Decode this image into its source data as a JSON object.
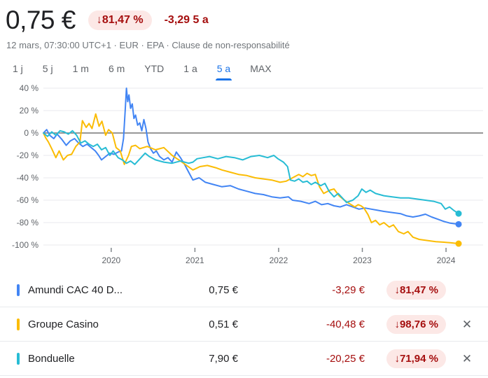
{
  "header": {
    "price": "0,75 €",
    "change_badge": "↓81,47 %",
    "change_text": "-3,29 5 a",
    "subtitle": "12 mars, 07:30:00 UTC+1 · EUR · EPA · Clause de non-responsabilité"
  },
  "tabs": {
    "items": [
      {
        "label": "1 j",
        "selected": false
      },
      {
        "label": "5 j",
        "selected": false
      },
      {
        "label": "1 m",
        "selected": false
      },
      {
        "label": "6 m",
        "selected": false
      },
      {
        "label": "YTD",
        "selected": false
      },
      {
        "label": "1 a",
        "selected": false
      },
      {
        "label": "5 a",
        "selected": true
      },
      {
        "label": "MAX",
        "selected": false
      }
    ]
  },
  "chart_data": {
    "type": "line",
    "ylabel": "% de variation",
    "ylim": [
      -100,
      40
    ],
    "grid": true,
    "y_ticks_pct": [
      40,
      20,
      0,
      -20,
      -40,
      -60,
      -80,
      -100
    ],
    "y_tick_labels": [
      "40 %",
      "20 %",
      "0 %",
      "-20 %",
      "-40 %",
      "-60 %",
      "-80 %",
      "-100 %"
    ],
    "x_tick_years": [
      2020,
      2021,
      2022,
      2023,
      2024
    ],
    "x_tick_labels": [
      "2020",
      "2021",
      "2022",
      "2023",
      "2024"
    ],
    "x_range_years": [
      2019.19,
      2024.15
    ],
    "series": [
      {
        "name": "Amundi CAC 40 D...",
        "color": "#4285f4",
        "final_pct": -81.47,
        "points": [
          [
            0,
            0
          ],
          [
            0.008,
            3
          ],
          [
            0.015,
            -2
          ],
          [
            0.025,
            -5
          ],
          [
            0.033,
            -1
          ],
          [
            0.045,
            -6
          ],
          [
            0.055,
            -11
          ],
          [
            0.065,
            -7
          ],
          [
            0.075,
            -5
          ],
          [
            0.085,
            -9
          ],
          [
            0.095,
            -12
          ],
          [
            0.105,
            -10
          ],
          [
            0.115,
            -13
          ],
          [
            0.125,
            -16
          ],
          [
            0.133,
            -20
          ],
          [
            0.14,
            -24
          ],
          [
            0.15,
            -21
          ],
          [
            0.16,
            -18
          ],
          [
            0.17,
            -19
          ],
          [
            0.18,
            -17
          ],
          [
            0.188,
            -16
          ],
          [
            0.193,
            -5
          ],
          [
            0.197,
            20
          ],
          [
            0.2,
            40
          ],
          [
            0.203,
            28
          ],
          [
            0.206,
            34
          ],
          [
            0.21,
            22
          ],
          [
            0.214,
            26
          ],
          [
            0.218,
            13
          ],
          [
            0.222,
            16
          ],
          [
            0.227,
            7
          ],
          [
            0.232,
            9
          ],
          [
            0.237,
            2
          ],
          [
            0.242,
            12
          ],
          [
            0.247,
            4
          ],
          [
            0.252,
            -8
          ],
          [
            0.258,
            -14
          ],
          [
            0.265,
            -18
          ],
          [
            0.272,
            -16
          ],
          [
            0.28,
            -21
          ],
          [
            0.29,
            -24
          ],
          [
            0.3,
            -22
          ],
          [
            0.31,
            -26
          ],
          [
            0.32,
            -17
          ],
          [
            0.33,
            -22
          ],
          [
            0.34,
            -28
          ],
          [
            0.35,
            -35
          ],
          [
            0.36,
            -42
          ],
          [
            0.375,
            -40
          ],
          [
            0.39,
            -44
          ],
          [
            0.41,
            -46
          ],
          [
            0.43,
            -48
          ],
          [
            0.45,
            -47
          ],
          [
            0.47,
            -50
          ],
          [
            0.49,
            -52
          ],
          [
            0.51,
            -54
          ],
          [
            0.53,
            -55
          ],
          [
            0.55,
            -57
          ],
          [
            0.57,
            -58
          ],
          [
            0.59,
            -57
          ],
          [
            0.6,
            -60
          ],
          [
            0.62,
            -61
          ],
          [
            0.64,
            -63
          ],
          [
            0.655,
            -61
          ],
          [
            0.67,
            -64
          ],
          [
            0.685,
            -63
          ],
          [
            0.7,
            -65
          ],
          [
            0.715,
            -66
          ],
          [
            0.73,
            -64
          ],
          [
            0.745,
            -66
          ],
          [
            0.76,
            -68
          ],
          [
            0.775,
            -67
          ],
          [
            0.79,
            -68
          ],
          [
            0.805,
            -69
          ],
          [
            0.82,
            -70
          ],
          [
            0.84,
            -71
          ],
          [
            0.86,
            -72
          ],
          [
            0.875,
            -74
          ],
          [
            0.89,
            -75
          ],
          [
            0.905,
            -74
          ],
          [
            0.92,
            -72.5
          ],
          [
            0.935,
            -75
          ],
          [
            0.95,
            -77
          ],
          [
            0.965,
            -79
          ],
          [
            0.98,
            -80.5
          ],
          [
            1,
            -81.47
          ]
        ]
      },
      {
        "name": "Groupe Casino",
        "color": "#fbbc04",
        "final_pct": -98.76,
        "points": [
          [
            0,
            0
          ],
          [
            0.005,
            -4
          ],
          [
            0.012,
            -8
          ],
          [
            0.02,
            -14
          ],
          [
            0.03,
            -22
          ],
          [
            0.038,
            -16
          ],
          [
            0.048,
            -24
          ],
          [
            0.058,
            -20
          ],
          [
            0.068,
            -19
          ],
          [
            0.078,
            -12
          ],
          [
            0.088,
            -8
          ],
          [
            0.094,
            11
          ],
          [
            0.103,
            5
          ],
          [
            0.11,
            8.5
          ],
          [
            0.117,
            4
          ],
          [
            0.126,
            17
          ],
          [
            0.134,
            6
          ],
          [
            0.141,
            10.5
          ],
          [
            0.15,
            -2
          ],
          [
            0.157,
            3
          ],
          [
            0.166,
            0
          ],
          [
            0.175,
            -13
          ],
          [
            0.185,
            -16
          ],
          [
            0.195,
            -28
          ],
          [
            0.205,
            -20
          ],
          [
            0.212,
            -12
          ],
          [
            0.222,
            -11
          ],
          [
            0.232,
            -14
          ],
          [
            0.25,
            -12
          ],
          [
            0.27,
            -15
          ],
          [
            0.29,
            -13
          ],
          [
            0.31,
            -20
          ],
          [
            0.33,
            -25
          ],
          [
            0.345,
            -29
          ],
          [
            0.36,
            -33
          ],
          [
            0.377,
            -30
          ],
          [
            0.395,
            -29
          ],
          [
            0.415,
            -31
          ],
          [
            0.43,
            -33
          ],
          [
            0.45,
            -35
          ],
          [
            0.47,
            -37
          ],
          [
            0.49,
            -38
          ],
          [
            0.51,
            -40
          ],
          [
            0.53,
            -41
          ],
          [
            0.55,
            -42
          ],
          [
            0.57,
            -44
          ],
          [
            0.585,
            -43
          ],
          [
            0.6,
            -40
          ],
          [
            0.615,
            -37
          ],
          [
            0.625,
            -39
          ],
          [
            0.635,
            -36
          ],
          [
            0.645,
            -38
          ],
          [
            0.655,
            -37
          ],
          [
            0.665,
            -48
          ],
          [
            0.675,
            -54
          ],
          [
            0.69,
            -51
          ],
          [
            0.7,
            -50
          ],
          [
            0.712,
            -56
          ],
          [
            0.725,
            -60
          ],
          [
            0.737,
            -63
          ],
          [
            0.75,
            -66
          ],
          [
            0.758,
            -64
          ],
          [
            0.765,
            -65
          ],
          [
            0.772,
            -67
          ],
          [
            0.782,
            -73
          ],
          [
            0.79,
            -80
          ],
          [
            0.8,
            -78
          ],
          [
            0.81,
            -82
          ],
          [
            0.82,
            -80
          ],
          [
            0.833,
            -84
          ],
          [
            0.843,
            -82
          ],
          [
            0.855,
            -88
          ],
          [
            0.868,
            -90
          ],
          [
            0.878,
            -88
          ],
          [
            0.89,
            -93
          ],
          [
            0.905,
            -95
          ],
          [
            0.925,
            -96
          ],
          [
            0.945,
            -97
          ],
          [
            0.965,
            -97.5
          ],
          [
            0.98,
            -98
          ],
          [
            1,
            -98.76
          ]
        ]
      },
      {
        "name": "Bonduelle",
        "color": "#27bcd4",
        "final_pct": -71.94,
        "points": [
          [
            0,
            0
          ],
          [
            0.01,
            -3
          ],
          [
            0.02,
            1
          ],
          [
            0.03,
            -2
          ],
          [
            0.04,
            2
          ],
          [
            0.05,
            1
          ],
          [
            0.06,
            -1
          ],
          [
            0.07,
            2
          ],
          [
            0.08,
            -2
          ],
          [
            0.09,
            -9
          ],
          [
            0.1,
            -7
          ],
          [
            0.11,
            -10
          ],
          [
            0.12,
            -12
          ],
          [
            0.13,
            -10
          ],
          [
            0.14,
            -15
          ],
          [
            0.15,
            -13
          ],
          [
            0.16,
            -20
          ],
          [
            0.168,
            -16
          ],
          [
            0.18,
            -22
          ],
          [
            0.19,
            -24
          ],
          [
            0.2,
            -27
          ],
          [
            0.21,
            -25
          ],
          [
            0.22,
            -28
          ],
          [
            0.235,
            -22
          ],
          [
            0.245,
            -18
          ],
          [
            0.255,
            -21
          ],
          [
            0.27,
            -24
          ],
          [
            0.29,
            -26
          ],
          [
            0.31,
            -27
          ],
          [
            0.33,
            -25
          ],
          [
            0.35,
            -27
          ],
          [
            0.36,
            -26
          ],
          [
            0.37,
            -23
          ],
          [
            0.385,
            -22
          ],
          [
            0.4,
            -21
          ],
          [
            0.42,
            -23
          ],
          [
            0.44,
            -21
          ],
          [
            0.46,
            -22
          ],
          [
            0.48,
            -24
          ],
          [
            0.5,
            -21
          ],
          [
            0.52,
            -20
          ],
          [
            0.54,
            -22
          ],
          [
            0.555,
            -20
          ],
          [
            0.565,
            -23
          ],
          [
            0.578,
            -26
          ],
          [
            0.588,
            -30
          ],
          [
            0.595,
            -42
          ],
          [
            0.605,
            -43
          ],
          [
            0.615,
            -41
          ],
          [
            0.625,
            -44
          ],
          [
            0.635,
            -43
          ],
          [
            0.645,
            -46
          ],
          [
            0.655,
            -44
          ],
          [
            0.668,
            -47
          ],
          [
            0.678,
            -45
          ],
          [
            0.688,
            -52
          ],
          [
            0.7,
            -57
          ],
          [
            0.71,
            -54
          ],
          [
            0.72,
            -58
          ],
          [
            0.73,
            -62
          ],
          [
            0.745,
            -60
          ],
          [
            0.758,
            -56
          ],
          [
            0.767,
            -50
          ],
          [
            0.777,
            -53
          ],
          [
            0.787,
            -51
          ],
          [
            0.8,
            -54
          ],
          [
            0.82,
            -56
          ],
          [
            0.84,
            -57
          ],
          [
            0.86,
            -58
          ],
          [
            0.88,
            -58
          ],
          [
            0.9,
            -59
          ],
          [
            0.92,
            -60
          ],
          [
            0.94,
            -61
          ],
          [
            0.958,
            -63
          ],
          [
            0.968,
            -68
          ],
          [
            0.978,
            -66
          ],
          [
            0.988,
            -69
          ],
          [
            1,
            -71.94
          ]
        ]
      }
    ]
  },
  "legend": {
    "rows": [
      {
        "name": "Amundi CAC 40 D...",
        "color": "#4285f4",
        "price": "0,75 €",
        "change": "-3,29 €",
        "change_pct": "↓81,47 %",
        "removable": false
      },
      {
        "name": "Groupe Casino",
        "color": "#fbbc04",
        "price": "0,51 €",
        "change": "-40,48 €",
        "change_pct": "↓98,76 %",
        "removable": true
      },
      {
        "name": "Bonduelle",
        "color": "#27bcd4",
        "price": "7,90 €",
        "change": "-20,25 €",
        "change_pct": "↓71,94 %",
        "removable": true
      }
    ],
    "close_glyph": "✕"
  },
  "colors": {
    "accent_blue": "#1a73e8",
    "negative_text": "#a50e0e",
    "negative_bg": "#fce8e6",
    "gridline": "#e8eaed",
    "zero_line": "#757575",
    "axis_text": "#5f6368",
    "muted_text": "#70757a"
  }
}
